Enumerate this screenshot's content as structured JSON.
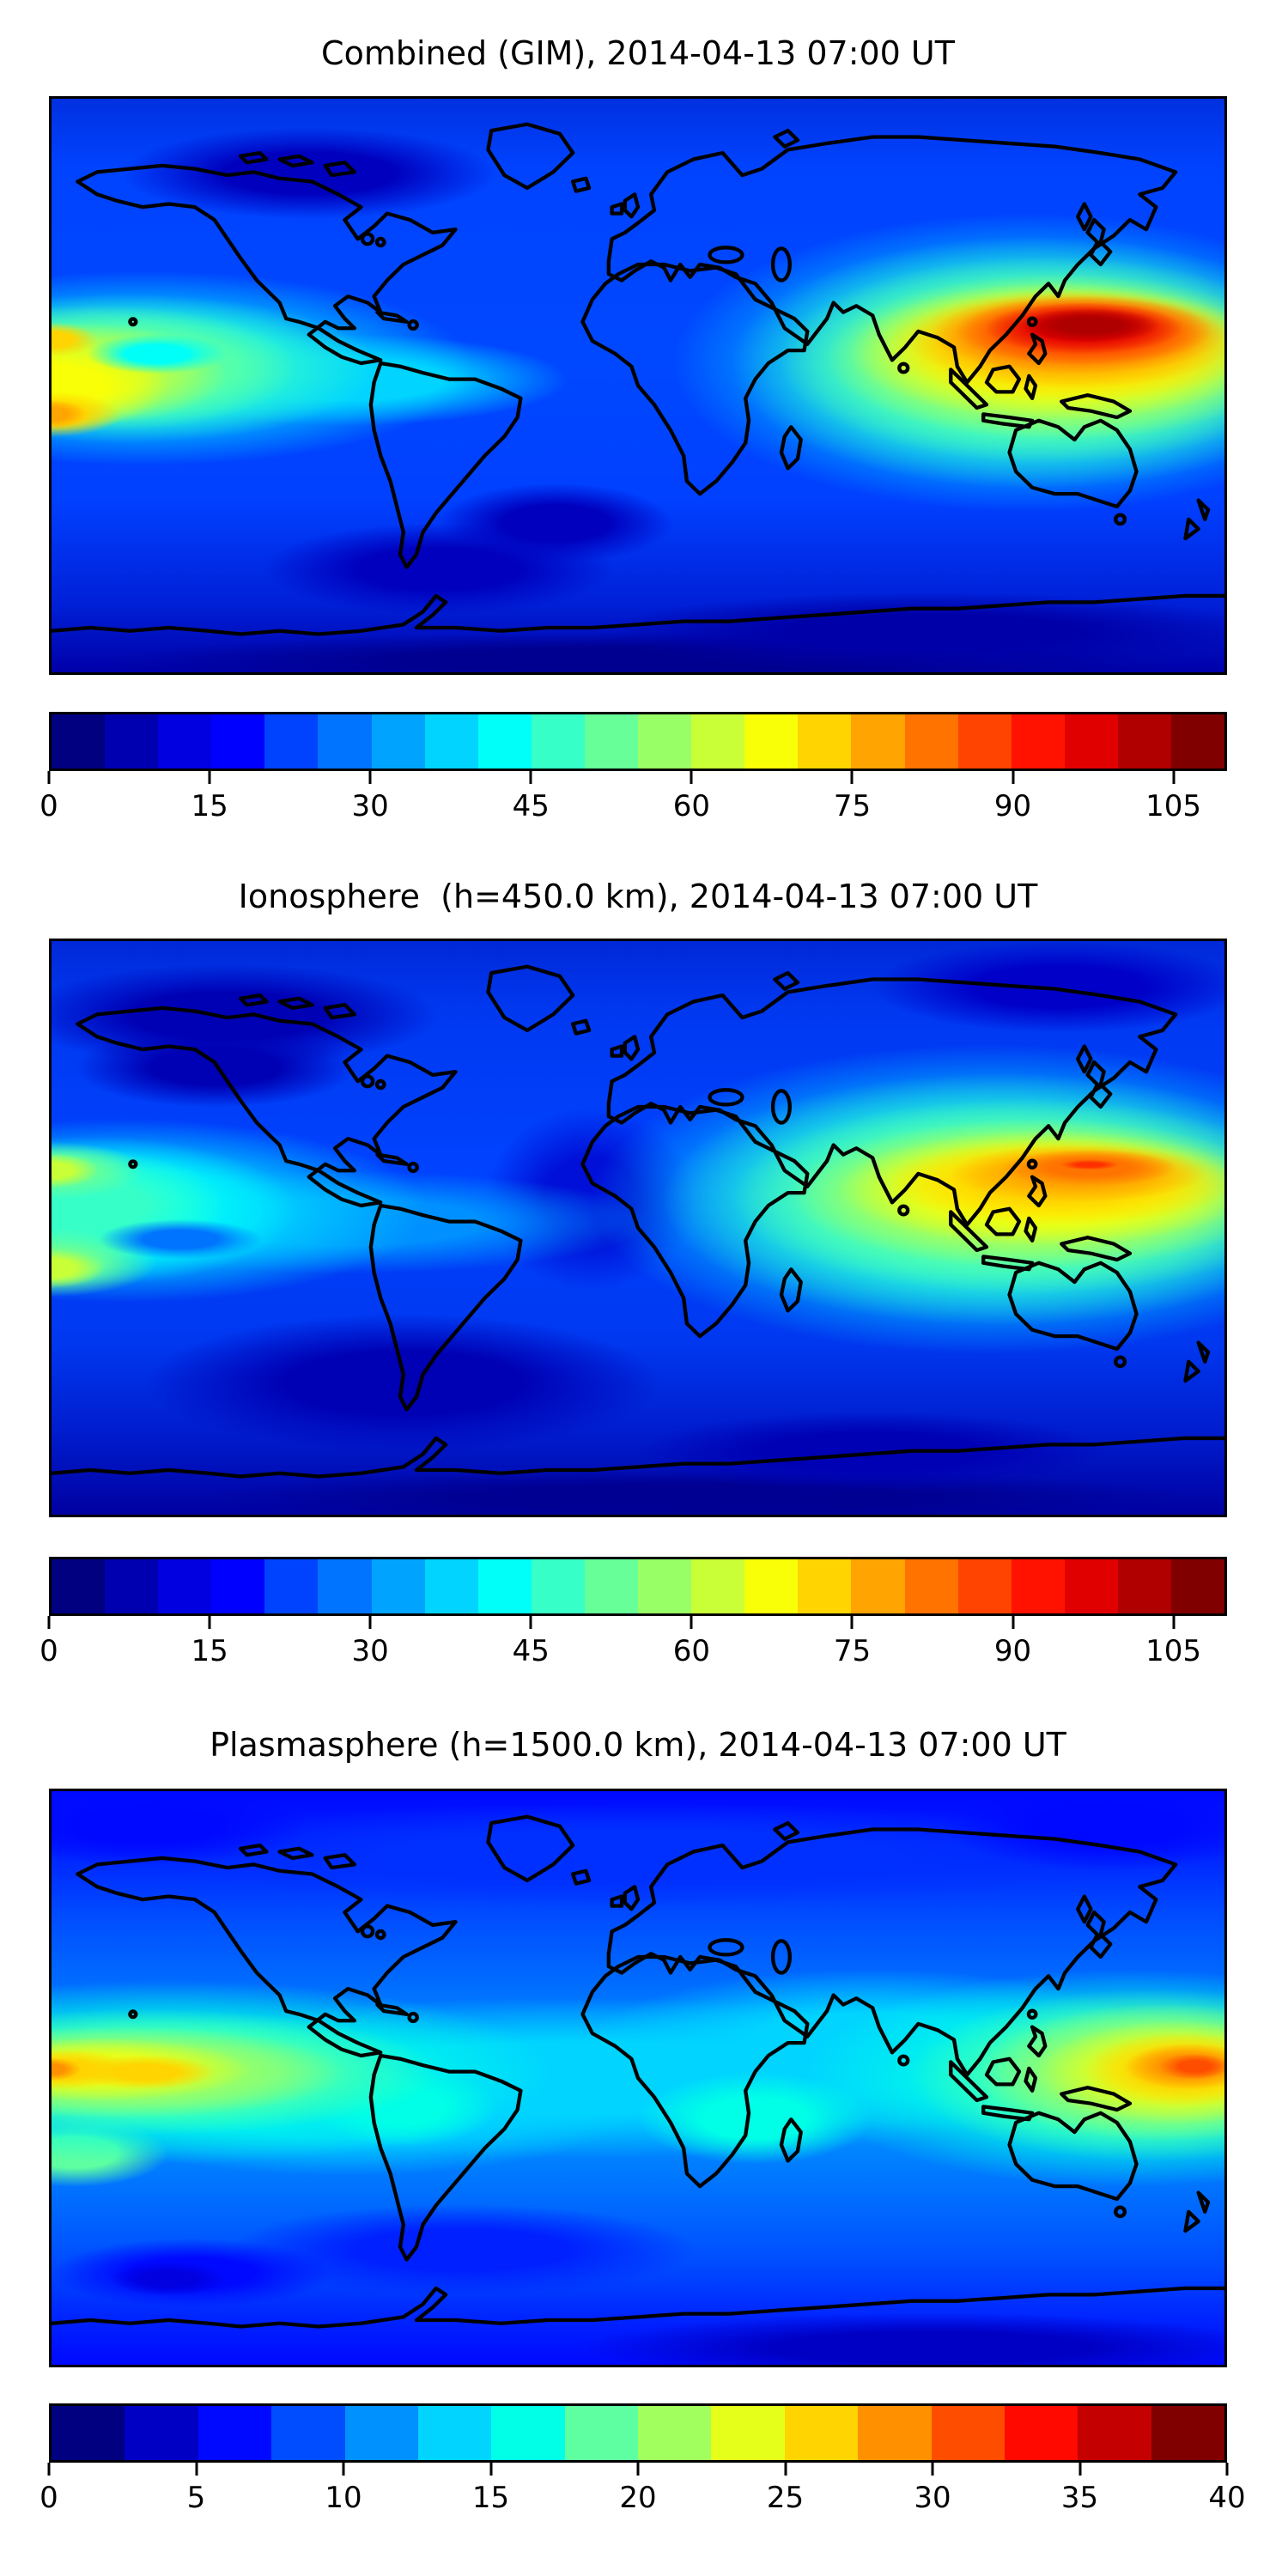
{
  "figure": {
    "background": "#ffffff",
    "text_color": "#000000"
  },
  "panels": [
    {
      "title": "Combined (GIM), 2014-04-13 07:00 UT",
      "colorbar": {
        "min": 0,
        "max": 110,
        "ticks": [
          0,
          15,
          30,
          45,
          60,
          75,
          90,
          105
        ],
        "segment_colors": [
          "#000080",
          "#0000B0",
          "#0000E1",
          "#0000FF",
          "#0043FF",
          "#0073FF",
          "#00A4FF",
          "#00D4FF",
          "#00FFF9",
          "#37FFC8",
          "#67FF98",
          "#98FF67",
          "#C8FF37",
          "#F9FF06",
          "#FFD400",
          "#FFA400",
          "#FF7300",
          "#FF4300",
          "#FF1200",
          "#E10000",
          "#B00000",
          "#800000"
        ]
      },
      "field": {
        "base": [
          [
            "#0030E0",
            0
          ],
          [
            "#0043FF",
            12
          ],
          [
            "#0048FF",
            45
          ],
          [
            "#0040FF",
            70
          ],
          [
            "#0020D8",
            88
          ],
          [
            "#0000A8",
            100
          ]
        ],
        "blobs": [
          [
            88.5,
            39.5,
            6,
            3,
            "#AF0000"
          ],
          [
            88,
            40,
            8.5,
            4.5,
            "#E10000"
          ],
          [
            88,
            40.5,
            11,
            6,
            "#FF4300"
          ],
          [
            87.5,
            41,
            12.5,
            7,
            "#FF7300"
          ],
          [
            87,
            42,
            14,
            8.5,
            "#FFA400"
          ],
          [
            87,
            43,
            16,
            10,
            "#FFD400"
          ],
          [
            86,
            44,
            18,
            12,
            "#F9FF06"
          ],
          [
            86,
            45,
            20,
            14.5,
            "#C8FF37"
          ],
          [
            85,
            45.5,
            23,
            18,
            "#67FF98"
          ],
          [
            84,
            46,
            26,
            22,
            "#37FFC8"
          ],
          [
            83,
            46,
            30,
            26,
            "#00D4FF"
          ],
          [
            9,
            44.5,
            6,
            3.5,
            "#00FFF9"
          ],
          [
            0,
            55,
            3,
            2.5,
            "#FFA400"
          ],
          [
            0,
            55,
            6,
            4,
            "#FFD400"
          ],
          [
            0,
            42,
            4,
            3,
            "#FFD400"
          ],
          [
            0,
            50,
            10,
            8,
            "#F9FF06"
          ],
          [
            2,
            48,
            13,
            9,
            "#C8FF37"
          ],
          [
            4,
            47,
            17,
            11,
            "#67FF98"
          ],
          [
            6,
            47,
            22,
            13,
            "#37FFC8"
          ],
          [
            8,
            47,
            28,
            17,
            "#00D4FF"
          ],
          [
            25,
            49,
            19,
            8,
            "#00D4FF"
          ],
          [
            22,
            13,
            16,
            8,
            "#0000BE"
          ],
          [
            33,
            82,
            15,
            8,
            "#0000BE"
          ],
          [
            43,
            74,
            10,
            7,
            "#0000BE"
          ],
          [
            75,
            93,
            28,
            7,
            "#0000A8"
          ],
          [
            50,
            98,
            45,
            5,
            "#000090"
          ]
        ]
      }
    },
    {
      "title": "Ionosphere  (h=450.0 km), 2014-04-13 07:00 UT",
      "colorbar": {
        "min": 0,
        "max": 110,
        "ticks": [
          0,
          15,
          30,
          45,
          60,
          75,
          90,
          105
        ],
        "segment_colors": [
          "#000080",
          "#0000B0",
          "#0000E1",
          "#0000FF",
          "#0043FF",
          "#0073FF",
          "#00A4FF",
          "#00D4FF",
          "#00FFF9",
          "#37FFC8",
          "#67FF98",
          "#98FF67",
          "#C8FF37",
          "#F9FF06",
          "#FFD400",
          "#FFA400",
          "#FF7300",
          "#FF4300",
          "#FF1200",
          "#E10000",
          "#B00000",
          "#800000"
        ]
      },
      "field": {
        "base": [
          [
            "#0028D8",
            0
          ],
          [
            "#0038F0",
            12
          ],
          [
            "#0043FF",
            40
          ],
          [
            "#0038F0",
            70
          ],
          [
            "#0018C8",
            88
          ],
          [
            "#0000A0",
            100
          ]
        ],
        "blobs": [
          [
            88.5,
            39,
            2.5,
            0.9,
            "#FF3000"
          ],
          [
            88.5,
            39.5,
            7.5,
            3.2,
            "#FF7300"
          ],
          [
            87.5,
            40.5,
            11,
            5,
            "#FFA400"
          ],
          [
            86,
            42,
            15,
            7.5,
            "#FFD400"
          ],
          [
            85,
            43,
            18,
            10,
            "#F9FF06"
          ],
          [
            84,
            44,
            21,
            13,
            "#C8FF37"
          ],
          [
            83,
            44.5,
            25,
            17,
            "#67FF98"
          ],
          [
            81,
            45,
            29,
            22,
            "#37FFC8"
          ],
          [
            80,
            45,
            34,
            27,
            "#00D4FF"
          ],
          [
            11,
            52,
            7,
            3.5,
            "#0073FF"
          ],
          [
            0,
            40,
            4,
            3,
            "#C8FF37"
          ],
          [
            0,
            57,
            4.5,
            3.5,
            "#C8FF37"
          ],
          [
            0,
            40,
            8,
            5,
            "#67FF98"
          ],
          [
            0,
            56,
            9,
            6,
            "#67FF98"
          ],
          [
            2,
            46,
            13,
            10,
            "#37FFC8"
          ],
          [
            3,
            47,
            18,
            13,
            "#00FFF9"
          ],
          [
            6,
            47,
            26,
            16,
            "#00D4FF"
          ],
          [
            25,
            49,
            26,
            9,
            "#0090FF"
          ],
          [
            15,
            13,
            18,
            9,
            "#0000B4"
          ],
          [
            14,
            22,
            12,
            7,
            "#0000B4"
          ],
          [
            86,
            8,
            16,
            8,
            "#0000C8"
          ],
          [
            30,
            77,
            22,
            12,
            "#0000B4"
          ],
          [
            46,
            45,
            9,
            16,
            "#0010D8"
          ],
          [
            70,
            89,
            20,
            7,
            "#0000B4"
          ],
          [
            55,
            97,
            42,
            5,
            "#000092"
          ]
        ]
      }
    },
    {
      "title": "Plasmasphere (h=1500.0 km), 2014-04-13 07:00 UT",
      "colorbar": {
        "min": 0,
        "max": 40,
        "ticks": [
          0,
          5,
          10,
          15,
          20,
          25,
          30,
          35,
          40
        ],
        "segment_colors": [
          "#000080",
          "#0000C4",
          "#0009FF",
          "#004DFF",
          "#0091FF",
          "#00D4FF",
          "#00FFE6",
          "#5EFFA1",
          "#A1FF5E",
          "#E6FF1A",
          "#FFD400",
          "#FF9100",
          "#FF4D00",
          "#FF0900",
          "#C40000",
          "#800000"
        ]
      },
      "field": {
        "base": [
          [
            "#0009FF",
            0
          ],
          [
            "#0020FF",
            10
          ],
          [
            "#004DFF",
            22
          ],
          [
            "#0070FF",
            35
          ],
          [
            "#0091FF",
            45
          ],
          [
            "#0091FF",
            58
          ],
          [
            "#0070FF",
            70
          ],
          [
            "#004DFF",
            82
          ],
          [
            "#0020FF",
            93
          ],
          [
            "#0009FF",
            100
          ]
        ],
        "blobs": [
          [
            97.5,
            48,
            3,
            2.2,
            "#FF4D00"
          ],
          [
            97,
            48,
            5.5,
            4,
            "#FF9100"
          ],
          [
            96.5,
            48.5,
            8.5,
            6.5,
            "#FFD400"
          ],
          [
            96,
            49,
            12,
            9,
            "#E6FF1A"
          ],
          [
            95,
            49,
            16,
            12,
            "#A1FF5E"
          ],
          [
            94,
            49.5,
            21,
            15,
            "#5EFFA1"
          ],
          [
            92,
            50,
            28,
            19,
            "#00FFE6"
          ],
          [
            0,
            48.5,
            2.5,
            2,
            "#FF9100"
          ],
          [
            1,
            48.5,
            6,
            3.5,
            "#FFD400"
          ],
          [
            8,
            49,
            6,
            3,
            "#FFD400"
          ],
          [
            4,
            48.5,
            13,
            5.5,
            "#E6FF1A"
          ],
          [
            6,
            49,
            19,
            8,
            "#A1FF5E"
          ],
          [
            8,
            49,
            25,
            11,
            "#5EFFA1"
          ],
          [
            10,
            49,
            33,
            16,
            "#00FFE6"
          ],
          [
            2,
            63,
            8,
            6,
            "#5EFFA1"
          ],
          [
            30,
            55,
            8,
            7,
            "#00FFE6"
          ],
          [
            60,
            57,
            10,
            8,
            "#00FFE6"
          ],
          [
            45,
            50,
            45,
            14,
            "#00D4FF"
          ],
          [
            70,
            45,
            25,
            14,
            "#00D4FF"
          ],
          [
            25,
            55,
            25,
            12,
            "#00D4FF"
          ],
          [
            10,
            85,
            5,
            3,
            "#0000E1"
          ],
          [
            12,
            84,
            12,
            6,
            "#0009FF"
          ],
          [
            35,
            80,
            20,
            8,
            "#0020FF"
          ],
          [
            8,
            6,
            14,
            7,
            "#0009FF"
          ],
          [
            90,
            6,
            14,
            8,
            "#0009FF"
          ],
          [
            50,
            11,
            45,
            9,
            "#0030FF"
          ],
          [
            75,
            97,
            30,
            6,
            "#0000C4"
          ]
        ]
      }
    }
  ],
  "chart_data": [
    {
      "type": "heatmap",
      "title": "Combined (GIM), 2014-04-13 07:00 UT",
      "projection": "equirectangular world map, lon -180..180, lat -90..90",
      "colormap": "jet",
      "value_range": [
        0,
        110
      ],
      "colorbar_ticks": [
        0,
        15,
        30,
        45,
        60,
        75,
        90,
        105
      ],
      "contour_level_step": 5,
      "features": [
        {
          "name": "primary maximum over SE Asia / W Pacific",
          "lon_deg": 135,
          "lat_deg": 18,
          "peak_value": 110
        },
        {
          "name": "broad enhancement India to W Pacific",
          "lon_range": [
            60,
            180
          ],
          "lat_range": [
            -10,
            30
          ],
          "value_range": [
            60,
            105
          ]
        },
        {
          "name": "left-edge (date line) lobe south",
          "lon_deg": -178,
          "lat_deg": -9,
          "peak_value": 78
        },
        {
          "name": "left-edge lobe north",
          "lon_deg": -178,
          "lat_deg": 14,
          "peak_value": 62
        },
        {
          "name": "equatorial band",
          "lat_range": [
            -25,
            20
          ],
          "value_range": [
            30,
            55
          ]
        },
        {
          "name": "mid/high-latitude background",
          "value_range": [
            10,
            25
          ]
        },
        {
          "name": "polar minima",
          "value_range": [
            0,
            10
          ]
        }
      ]
    },
    {
      "type": "heatmap",
      "title": "Ionosphere  (h=450.0 km), 2014-04-13 07:00 UT",
      "projection": "equirectangular world map, lon -180..180, lat -90..90",
      "colormap": "jet",
      "value_range": [
        0,
        110
      ],
      "colorbar_ticks": [
        0,
        15,
        30,
        45,
        60,
        75,
        90,
        105
      ],
      "contour_level_step": 5,
      "features": [
        {
          "name": "maximum just east of Philippines",
          "lon_deg": 138,
          "lat_deg": 19,
          "peak_value": 95
        },
        {
          "name": "yellow enhancement India to W Pacific",
          "lon_range": [
            65,
            180
          ],
          "lat_range": [
            -5,
            30
          ],
          "value_range": [
            55,
            90
          ]
        },
        {
          "name": "left-edge lobes",
          "lon_deg": -179,
          "lat_range": [
            -15,
            10
          ],
          "peak_value": 58
        },
        {
          "name": "equatorial band",
          "lat_range": [
            -25,
            20
          ],
          "value_range": [
            25,
            50
          ]
        },
        {
          "name": "mid/high-latitude background",
          "value_range": [
            5,
            20
          ]
        }
      ]
    },
    {
      "type": "heatmap",
      "title": "Plasmasphere (h=1500.0 km), 2014-04-13 07:00 UT",
      "projection": "equirectangular world map, lon -180..180, lat -90..90",
      "colormap": "jet",
      "value_range": [
        0,
        40
      ],
      "colorbar_ticks": [
        0,
        5,
        10,
        15,
        20,
        25,
        30,
        35,
        40
      ],
      "contour_level_step": 2.5,
      "features": [
        {
          "name": "compact maximum near date line, W Pacific",
          "lon_deg": 172,
          "lat_deg": -3,
          "peak_value": 36
        },
        {
          "name": "left-edge lobe",
          "lon_deg": -179,
          "lat_deg": -2,
          "peak_value": 31
        },
        {
          "name": "secondary yellow blob",
          "lon_deg": -152,
          "lat_deg": -3,
          "peak_value": 27
        },
        {
          "name": "equatorial cyan band",
          "lat_range": [
            -25,
            20
          ],
          "value_range": [
            13,
            20
          ]
        },
        {
          "name": "high-latitude background",
          "value_range": [
            5,
            12
          ]
        },
        {
          "name": "polar minima",
          "value_range": [
            2,
            8
          ]
        }
      ]
    }
  ]
}
